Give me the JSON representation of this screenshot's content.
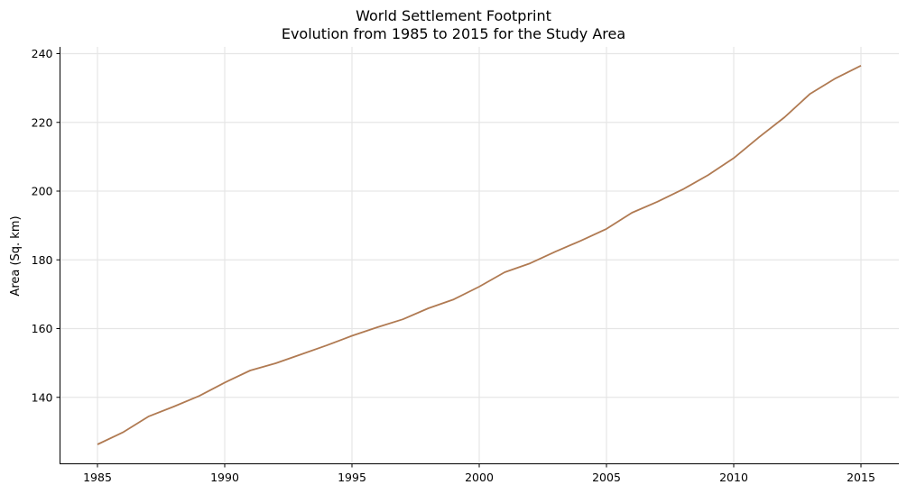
{
  "chart_data": {
    "type": "line",
    "title": "World Settlement Footprint",
    "subtitle": "Evolution from 1985 to 2015 for the Study Area",
    "xlabel": "",
    "ylabel": "Area (Sq. km)",
    "x": [
      1985,
      1986,
      1987,
      1988,
      1989,
      1990,
      1991,
      1992,
      1993,
      1994,
      1995,
      1996,
      1997,
      1998,
      1999,
      2000,
      2001,
      2002,
      2003,
      2004,
      2005,
      2006,
      2007,
      2008,
      2009,
      2010,
      2011,
      2012,
      2013,
      2014,
      2015
    ],
    "series": [
      {
        "name": "Area (Sq. km)",
        "color": "#b07a52",
        "values": [
          126.3,
          129.8,
          134.4,
          137.3,
          140.4,
          144.3,
          147.8,
          149.9,
          152.5,
          155.1,
          157.9,
          160.4,
          162.7,
          165.9,
          168.5,
          172.2,
          176.4,
          179.0,
          182.4,
          185.6,
          189.0,
          193.7,
          196.9,
          200.5,
          204.7,
          209.6,
          215.7,
          221.5,
          228.3,
          232.8,
          236.5
        ]
      }
    ],
    "xticks": [
      1985,
      1990,
      1995,
      2000,
      2005,
      2010,
      2015
    ],
    "yticks": [
      140,
      160,
      180,
      200,
      220,
      240
    ],
    "xlim": [
      1983.5,
      2016.5
    ],
    "ylim": [
      121.2,
      242
    ],
    "grid": true,
    "legend": null
  },
  "title": {
    "line1": "World Settlement Footprint",
    "line2": "Evolution from 1985 to 2015 for the Study Area"
  },
  "axes": {
    "ylabel": "Area (Sq. km)",
    "xtick_labels": [
      "1985",
      "1990",
      "1995",
      "2000",
      "2005",
      "2010",
      "2015"
    ],
    "ytick_labels": [
      "140",
      "160",
      "180",
      "200",
      "220",
      "240"
    ]
  }
}
